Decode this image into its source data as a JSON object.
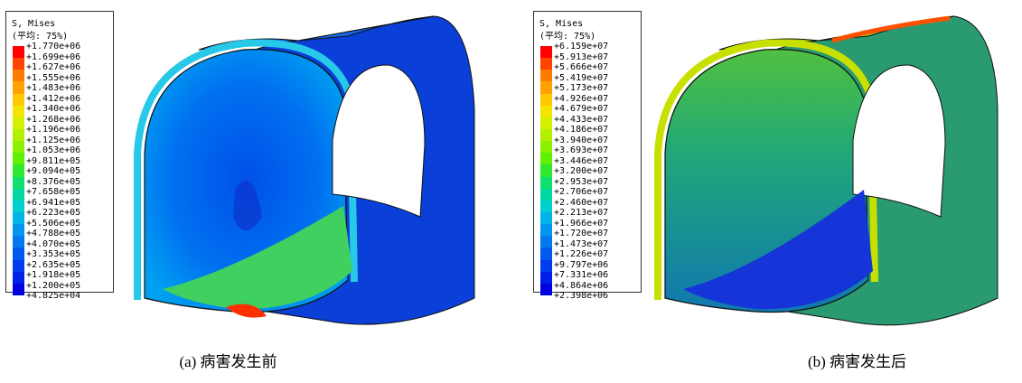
{
  "panels": [
    {
      "legend_title": "S, Mises",
      "legend_subtitle": "(平均: 75%)",
      "ticks": [
        "+1.770e+06",
        "+1.699e+06",
        "+1.627e+06",
        "+1.555e+06",
        "+1.483e+06",
        "+1.412e+06",
        "+1.340e+06",
        "+1.268e+06",
        "+1.196e+06",
        "+1.125e+06",
        "+1.053e+06",
        "+9.811e+05",
        "+9.094e+05",
        "+8.376e+05",
        "+7.658e+05",
        "+6.941e+05",
        "+6.223e+05",
        "+5.506e+05",
        "+4.788e+05",
        "+4.070e+05",
        "+3.353e+05",
        "+2.635e+05",
        "+1.918e+05",
        "+1.200e+05",
        "+4.825e+04"
      ],
      "caption": "(a)  病害发生前"
    },
    {
      "legend_title": "S, Mises",
      "legend_subtitle": "(平均: 75%)",
      "ticks": [
        "+6.159e+07",
        "+5.913e+07",
        "+5.666e+07",
        "+5.419e+07",
        "+5.173e+07",
        "+4.926e+07",
        "+4.679e+07",
        "+4.433e+07",
        "+4.186e+07",
        "+3.940e+07",
        "+3.693e+07",
        "+3.446e+07",
        "+3.200e+07",
        "+2.953e+07",
        "+2.706e+07",
        "+2.460e+07",
        "+2.213e+07",
        "+1.966e+07",
        "+1.720e+07",
        "+1.473e+07",
        "+1.226e+07",
        "+9.797e+06",
        "+7.331e+06",
        "+4.864e+06",
        "+2.398e+06"
      ],
      "caption": "(b)  病害发生后"
    }
  ],
  "colormap": [
    "#ff0000",
    "#ff4500",
    "#ff7b00",
    "#ffa200",
    "#ffc800",
    "#f2e600",
    "#d4f000",
    "#b2f000",
    "#8cf000",
    "#5df000",
    "#2fe82f",
    "#10e070",
    "#00d8a0",
    "#00cfd0",
    "#00b4e8",
    "#0096f0",
    "#0078f0",
    "#005af0",
    "#003cf0",
    "#0020e8",
    "#0000e0"
  ]
}
